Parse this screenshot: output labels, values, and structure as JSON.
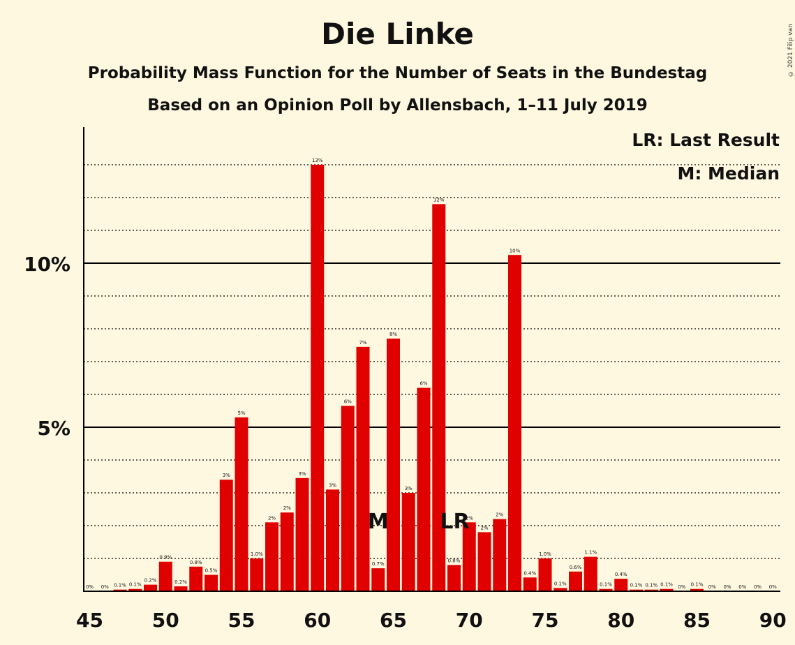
{
  "chart_data": {
    "type": "bar",
    "title": "Die Linke",
    "subtitle": "Probability Mass Function for the Number of Seats in the Bundestag",
    "subtitle2": "Based on an Opinion Poll by Allensbach, 1–11 July 2019",
    "copyright": "© 2021 Filip van Laenen",
    "bar_color": "#E00000",
    "xlim": [
      45,
      90
    ],
    "ylim": [
      0,
      14
    ],
    "x_ticks": [
      "45",
      "50",
      "55",
      "60",
      "65",
      "70",
      "75",
      "80",
      "85",
      "90"
    ],
    "y_ticks": [
      {
        "value": 5,
        "label": "5%"
      },
      {
        "value": 10,
        "label": "10%"
      }
    ],
    "legend": [
      "LR: Last Result",
      "M: Median"
    ],
    "markers": [
      {
        "label": "M",
        "seat": 64
      },
      {
        "label": "LR",
        "seat": 69
      }
    ],
    "bars": [
      {
        "seat": 46,
        "value": 0.0,
        "label": "0%"
      },
      {
        "seat": 47,
        "value": 0.05,
        "label": "0.1%"
      },
      {
        "seat": 48,
        "value": 0.07,
        "label": "0.1%"
      },
      {
        "seat": 49,
        "value": 0.2,
        "label": "0.2%"
      },
      {
        "seat": 50,
        "value": 0.9,
        "label": "0.9%"
      },
      {
        "seat": 51,
        "value": 0.15,
        "label": "0.2%"
      },
      {
        "seat": 52,
        "value": 0.75,
        "label": "0.8%"
      },
      {
        "seat": 53,
        "value": 0.5,
        "label": "0.5%"
      },
      {
        "seat": 54,
        "value": 3.4,
        "label": "3%"
      },
      {
        "seat": 55,
        "value": 5.3,
        "label": "5%"
      },
      {
        "seat": 56,
        "value": 1.0,
        "label": "1.0%"
      },
      {
        "seat": 57,
        "value": 2.1,
        "label": "2%"
      },
      {
        "seat": 58,
        "value": 2.4,
        "label": "2%"
      },
      {
        "seat": 59,
        "value": 3.45,
        "label": "3%"
      },
      {
        "seat": 60,
        "value": 13.0,
        "label": "13%"
      },
      {
        "seat": 61,
        "value": 3.1,
        "label": "3%"
      },
      {
        "seat": 62,
        "value": 5.65,
        "label": "6%"
      },
      {
        "seat": 63,
        "value": 7.45,
        "label": "7%"
      },
      {
        "seat": 64,
        "value": 0.7,
        "label": "0.7%"
      },
      {
        "seat": 65,
        "value": 7.7,
        "label": "8%"
      },
      {
        "seat": 66,
        "value": 3.0,
        "label": "3%"
      },
      {
        "seat": 67,
        "value": 6.2,
        "label": "6%"
      },
      {
        "seat": 68,
        "value": 11.8,
        "label": "12%"
      },
      {
        "seat": 69,
        "value": 0.8,
        "label": "0.8%"
      },
      {
        "seat": 70,
        "value": 2.1,
        "label": "2%"
      },
      {
        "seat": 71,
        "value": 1.8,
        "label": "2%"
      },
      {
        "seat": 72,
        "value": 2.2,
        "label": "2%"
      },
      {
        "seat": 73,
        "value": 10.25,
        "label": "10%"
      },
      {
        "seat": 74,
        "value": 0.42,
        "label": "0.4%"
      },
      {
        "seat": 75,
        "value": 1.0,
        "label": "1.0%"
      },
      {
        "seat": 76,
        "value": 0.1,
        "label": "0.1%"
      },
      {
        "seat": 77,
        "value": 0.6,
        "label": "0.6%"
      },
      {
        "seat": 78,
        "value": 1.05,
        "label": "1.1%"
      },
      {
        "seat": 79,
        "value": 0.07,
        "label": "0.1%"
      },
      {
        "seat": 80,
        "value": 0.38,
        "label": "0.4%"
      },
      {
        "seat": 81,
        "value": 0.05,
        "label": "0.1%"
      },
      {
        "seat": 82,
        "value": 0.05,
        "label": "0.1%"
      },
      {
        "seat": 83,
        "value": 0.07,
        "label": "0.1%"
      },
      {
        "seat": 84,
        "value": 0.0,
        "label": "0%"
      },
      {
        "seat": 85,
        "value": 0.07,
        "label": "0.1%"
      },
      {
        "seat": 86,
        "value": 0.0,
        "label": "0%"
      },
      {
        "seat": 87,
        "value": 0.0,
        "label": "0%"
      },
      {
        "seat": 88,
        "value": 0.0,
        "label": "0%"
      },
      {
        "seat": 89,
        "value": 0.0,
        "label": "0%"
      },
      {
        "seat": 90,
        "value": 0.0,
        "label": "0%"
      }
    ],
    "extra_zero_labels": [
      {
        "seat": 45,
        "label": "0%"
      }
    ]
  }
}
